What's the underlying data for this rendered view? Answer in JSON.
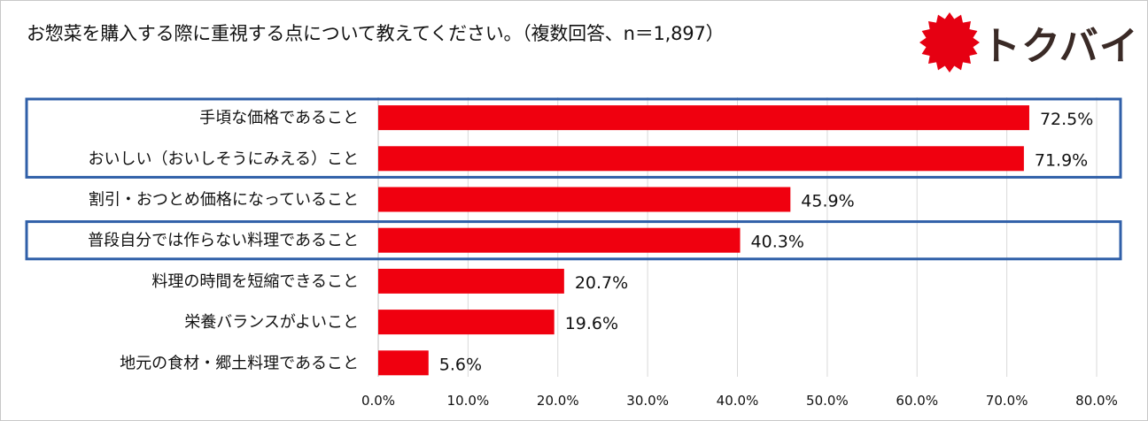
{
  "title": "お惣菜を購入する際に重視する点について教えてください。（複数回答、n＝1,897）",
  "logo": {
    "text": "トクバイ",
    "burst_color": "#e60012",
    "text_color": "#3a2a26"
  },
  "highlight_box_color": "#2f5fa8",
  "bar_color": "#f0000f",
  "chart_data": {
    "type": "bar",
    "orientation": "horizontal",
    "categories": [
      "手頃な価格であること",
      "おいしい（おいしそうにみえる）こと",
      "割引・おつとめ価格になっていること",
      "普段自分では作らない料理であること",
      "料理の時間を短縮できること",
      "栄養バランスがよいこと",
      "地元の食材・郷土料理であること"
    ],
    "values": [
      72.5,
      71.9,
      45.9,
      40.3,
      20.7,
      19.6,
      5.6
    ],
    "value_labels": [
      "72.5%",
      "71.9%",
      "45.9%",
      "40.3%",
      "20.7%",
      "19.6%",
      "5.6%"
    ],
    "xlim": [
      0,
      80
    ],
    "ticks": [
      0,
      10,
      20,
      30,
      40,
      50,
      60,
      70,
      80
    ],
    "tick_labels": [
      "0.0%",
      "10.0%",
      "20.0%",
      "30.0%",
      "40.0%",
      "50.0%",
      "60.0%",
      "70.0%",
      "80.0%"
    ],
    "grid": true,
    "highlight_groups": [
      [
        0,
        1
      ],
      [
        3
      ]
    ]
  }
}
